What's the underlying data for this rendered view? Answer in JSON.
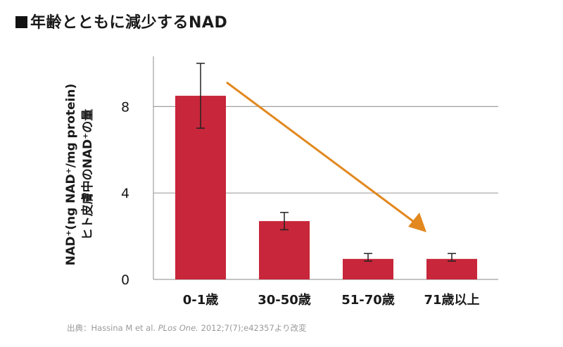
{
  "title": "年齢とともに減少するNAD",
  "ylabel_line1": "NAD⁺(ng NAD⁺/mg protein)",
  "ylabel_line2": "ヒト皮膚中のNAD⁺の量",
  "source_prefix": "出典：Hassina M et al. ",
  "source_journal": "PLos One.",
  "source_suffix": " 2012;7(7);e42357より改変",
  "colors": {
    "bar": "#c8263a",
    "arrow": "#e2881e",
    "grid": "#a0a0a0",
    "error": "#222222"
  },
  "chart_data": {
    "type": "bar",
    "title": "年齢とともに減少するNAD",
    "categories": [
      "0-1歳",
      "30-50歳",
      "51-70歳",
      "71歳以上"
    ],
    "values": [
      8.5,
      2.7,
      0.95,
      0.95
    ],
    "error_low": [
      7.0,
      2.3,
      0.85,
      0.85
    ],
    "error_high": [
      10.0,
      3.1,
      1.2,
      1.2
    ],
    "ylabel": "NAD⁺(ng NAD⁺/mg protein) ヒト皮膚中のNAD⁺の量",
    "ylim": [
      0,
      10
    ],
    "yticks": [
      0,
      4,
      8
    ],
    "grid": true,
    "annotation": "decreasing trend arrow"
  }
}
